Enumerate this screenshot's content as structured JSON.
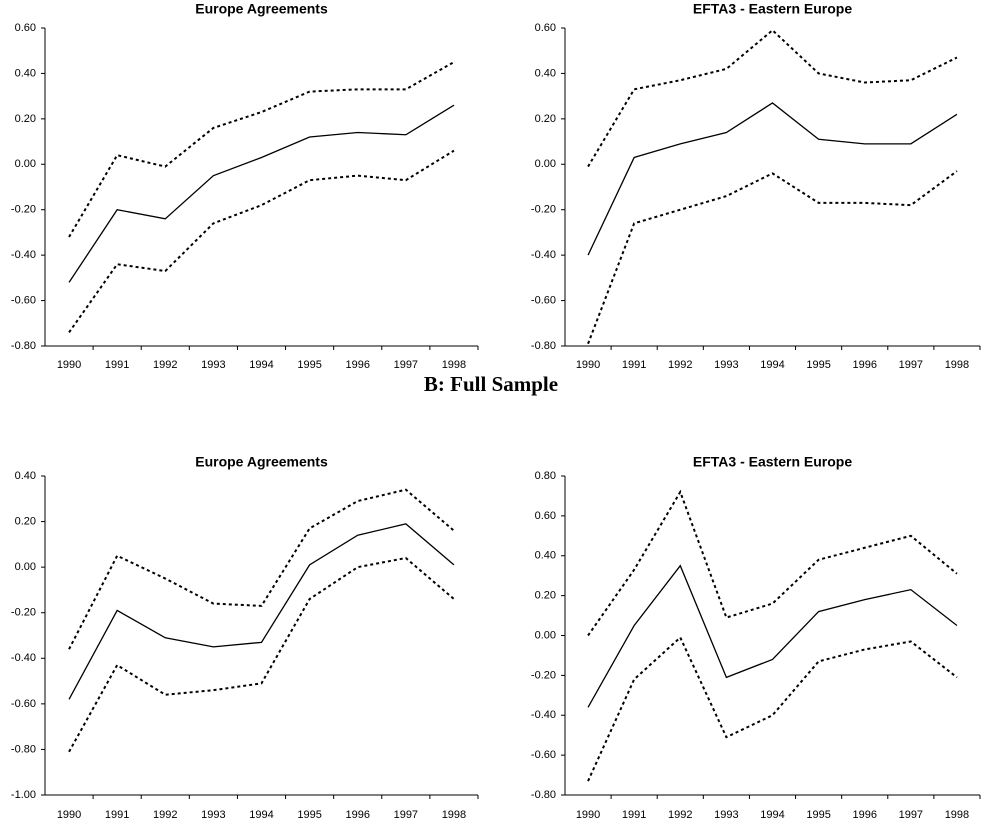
{
  "heading": "B: Full Sample",
  "chart_data": [
    {
      "type": "line",
      "title": "Europe Agreements",
      "categories": [
        "1990",
        "1991",
        "1992",
        "1993",
        "1994",
        "1995",
        "1996",
        "1997",
        "1998"
      ],
      "ylim": [
        -0.8,
        0.6
      ],
      "yticks": [
        {
          "value": -0.8,
          "label": "-0.80"
        },
        {
          "value": -0.6,
          "label": "-0.60"
        },
        {
          "value": -0.4,
          "label": "-0.40"
        },
        {
          "value": -0.2,
          "label": "-0.20"
        },
        {
          "value": 0,
          "label": "0.00"
        },
        {
          "value": 0.2,
          "label": "0.20"
        },
        {
          "value": 0.4,
          "label": "0.40"
        },
        {
          "value": 0.6,
          "label": "0.60"
        }
      ],
      "series": [
        {
          "color": "#000000",
          "dash": false,
          "values": [
            -0.52,
            -0.2,
            -0.24,
            -0.05,
            0.03,
            0.12,
            0.14,
            0.13,
            0.26
          ]
        },
        {
          "color": "#000000",
          "dash": true,
          "values": [
            -0.32,
            0.04,
            -0.01,
            0.16,
            0.23,
            0.32,
            0.33,
            0.33,
            0.45
          ]
        },
        {
          "color": "#000000",
          "dash": true,
          "values": [
            -0.74,
            -0.44,
            -0.47,
            -0.26,
            -0.18,
            -0.07,
            -0.05,
            -0.07,
            0.06
          ]
        }
      ]
    },
    {
      "type": "line",
      "title": "EFTA3 - Eastern Europe",
      "categories": [
        "1990",
        "1991",
        "1992",
        "1993",
        "1994",
        "1995",
        "1996",
        "1997",
        "1998"
      ],
      "ylim": [
        -0.8,
        0.6
      ],
      "yticks": [
        {
          "value": -0.8,
          "label": "-0.80"
        },
        {
          "value": -0.6,
          "label": "-0.60"
        },
        {
          "value": -0.4,
          "label": "-0.40"
        },
        {
          "value": -0.2,
          "label": "-0.20"
        },
        {
          "value": 0,
          "label": "0.00"
        },
        {
          "value": 0.2,
          "label": "0.20"
        },
        {
          "value": 0.4,
          "label": "0.40"
        },
        {
          "value": 0.6,
          "label": "0.60"
        }
      ],
      "series": [
        {
          "color": "#000000",
          "dash": false,
          "values": [
            -0.4,
            0.03,
            0.09,
            0.14,
            0.27,
            0.11,
            0.09,
            0.09,
            0.22
          ]
        },
        {
          "color": "#000000",
          "dash": true,
          "values": [
            -0.01,
            0.33,
            0.37,
            0.42,
            0.59,
            0.4,
            0.36,
            0.37,
            0.47
          ]
        },
        {
          "color": "#000000",
          "dash": true,
          "values": [
            -0.79,
            -0.26,
            -0.2,
            -0.14,
            -0.04,
            -0.17,
            -0.17,
            -0.18,
            -0.03
          ]
        }
      ]
    },
    {
      "type": "line",
      "title": "Europe Agreements",
      "categories": [
        "1990",
        "1991",
        "1992",
        "1993",
        "1994",
        "1995",
        "1996",
        "1997",
        "1998"
      ],
      "ylim": [
        -1.0,
        0.4
      ],
      "yticks": [
        {
          "value": -1.0,
          "label": "-1.00"
        },
        {
          "value": -0.8,
          "label": "-0.80"
        },
        {
          "value": -0.6,
          "label": "-0.60"
        },
        {
          "value": -0.4,
          "label": "-0.40"
        },
        {
          "value": -0.2,
          "label": "-0.20"
        },
        {
          "value": 0,
          "label": "0.00"
        },
        {
          "value": 0.2,
          "label": "0.20"
        },
        {
          "value": 0.4,
          "label": "0.40"
        }
      ],
      "series": [
        {
          "color": "#000000",
          "dash": false,
          "values": [
            -0.58,
            -0.19,
            -0.31,
            -0.35,
            -0.33,
            0.01,
            0.14,
            0.19,
            0.01
          ]
        },
        {
          "color": "#000000",
          "dash": true,
          "values": [
            -0.36,
            0.05,
            -0.05,
            -0.16,
            -0.17,
            0.17,
            0.29,
            0.34,
            0.16
          ]
        },
        {
          "color": "#000000",
          "dash": true,
          "values": [
            -0.81,
            -0.43,
            -0.56,
            -0.54,
            -0.51,
            -0.14,
            0.0,
            0.04,
            -0.14
          ]
        }
      ]
    },
    {
      "type": "line",
      "title": "EFTA3 - Eastern Europe",
      "categories": [
        "1990",
        "1991",
        "1992",
        "1993",
        "1994",
        "1995",
        "1996",
        "1997",
        "1998"
      ],
      "ylim": [
        -0.8,
        0.8
      ],
      "yticks": [
        {
          "value": -0.8,
          "label": "-0.80"
        },
        {
          "value": -0.6,
          "label": "-0.60"
        },
        {
          "value": -0.4,
          "label": "-0.40"
        },
        {
          "value": -0.2,
          "label": "-0.20"
        },
        {
          "value": 0,
          "label": "0.00"
        },
        {
          "value": 0.2,
          "label": "0.20"
        },
        {
          "value": 0.4,
          "label": "0.40"
        },
        {
          "value": 0.6,
          "label": "0.60"
        },
        {
          "value": 0.8,
          "label": "0.80"
        }
      ],
      "series": [
        {
          "color": "#000000",
          "dash": false,
          "values": [
            -0.36,
            0.05,
            0.35,
            -0.21,
            -0.12,
            0.12,
            0.18,
            0.23,
            0.05
          ]
        },
        {
          "color": "#000000",
          "dash": true,
          "values": [
            0.0,
            0.33,
            0.72,
            0.09,
            0.16,
            0.38,
            0.44,
            0.5,
            0.31
          ]
        },
        {
          "color": "#000000",
          "dash": true,
          "values": [
            -0.73,
            -0.22,
            -0.01,
            -0.51,
            -0.4,
            -0.13,
            -0.07,
            -0.03,
            -0.21
          ]
        }
      ]
    }
  ]
}
